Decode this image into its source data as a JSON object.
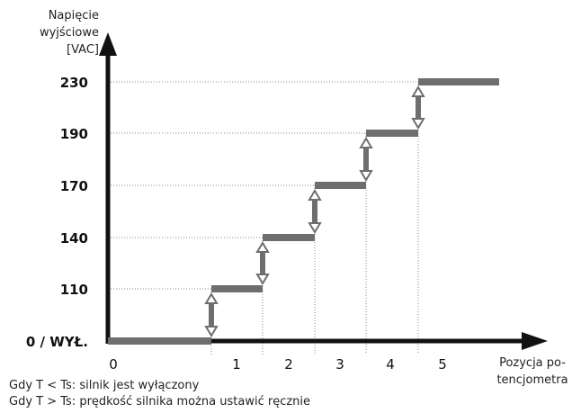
{
  "chart_data": {
    "type": "line",
    "ylabel_lines": [
      "Napięcie",
      "wyjściowe",
      "[VAC]"
    ],
    "xlabel_lines": [
      "Pozycja po-",
      "tencjometra"
    ],
    "y_ticks": [
      {
        "label": "0  /  WYŁ.",
        "value": 0
      },
      {
        "label": "110",
        "value": 110
      },
      {
        "label": "140",
        "value": 140
      },
      {
        "label": "170",
        "value": 170
      },
      {
        "label": "190",
        "value": 190
      },
      {
        "label": "230",
        "value": 230
      }
    ],
    "x_positions": [
      "0",
      "1",
      "2",
      "3",
      "4",
      "5"
    ],
    "steps": [
      {
        "position": "0",
        "value": 0
      },
      {
        "position": "1",
        "value": 110
      },
      {
        "position": "2",
        "value": 140
      },
      {
        "position": "3",
        "value": 170
      },
      {
        "position": "4",
        "value": 190
      },
      {
        "position": "5",
        "value": 230
      }
    ],
    "colors": {
      "step": "#6e6e6e",
      "axis": "#111111",
      "guide": "#888888"
    }
  },
  "notes": [
    "Gdy T < Ts: silnik jest wyłączony",
    "Gdy T > Ts: prędkość silnika można ustawić ręcznie"
  ]
}
